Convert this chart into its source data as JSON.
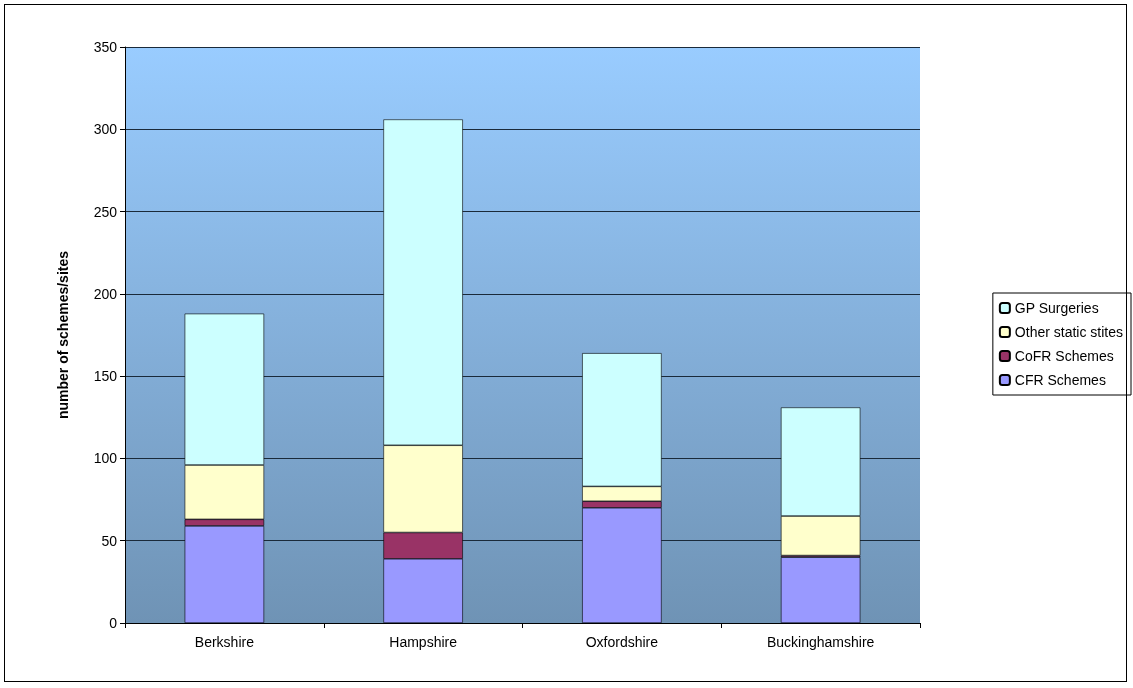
{
  "chart_data": {
    "type": "bar",
    "stacked": true,
    "ylabel": "number of schemes/sites",
    "categories": [
      "Berkshire",
      "Hampshire",
      "Oxfordshire",
      "Buckinghamshire"
    ],
    "series": [
      {
        "name": "CFR Schemes",
        "color": "#9999ff",
        "values": [
          59,
          39,
          70,
          40
        ]
      },
      {
        "name": "CoFR Schemes",
        "color": "#993366",
        "values": [
          4,
          16,
          4,
          1
        ]
      },
      {
        "name": "Other static stites",
        "color": "#ffffcc",
        "values": [
          33,
          53,
          9,
          24
        ]
      },
      {
        "name": "GP Surgeries",
        "color": "#ccffff",
        "values": [
          92,
          198,
          81,
          66
        ]
      }
    ],
    "ylim": [
      0,
      350
    ],
    "yticks": [
      0,
      50,
      100,
      150,
      200,
      250,
      300,
      350
    ],
    "grid": "y",
    "legend": "right"
  }
}
